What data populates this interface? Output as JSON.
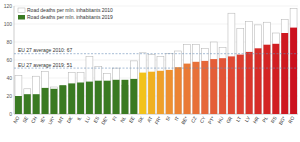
{
  "chart_data": {
    "type": "bar",
    "categories": [
      "NO",
      "SE",
      "CH",
      "IE*",
      "UK*",
      "MT",
      "DK",
      "IL",
      "LU",
      "ES",
      "DE*",
      "FI",
      "NL",
      "EE",
      "SK",
      "AT",
      "FR*",
      "SI",
      "IT",
      "BE*",
      "CZ",
      "CY",
      "PT*",
      "HU",
      "GR",
      "LT",
      "LV",
      "HR",
      "PL",
      "RS",
      "BG*",
      "RO"
    ],
    "series": [
      {
        "name": "Road deaths per mln. inhabitants 2010",
        "color": "#ffffff",
        "values": [
          43,
          28,
          42,
          47,
          30,
          31,
          46,
          46,
          64,
          53,
          45,
          51,
          32,
          59,
          68,
          66,
          64,
          67,
          70,
          77,
          77,
          73,
          80,
          74,
          112,
          95,
          103,
          99,
          102,
          90,
          105,
          117
        ]
      },
      {
        "name": "Road deaths per mln. inhabitants 2019",
        "color": "#3a7a22",
        "colors": [
          "#3a7a22",
          "#3a7a22",
          "#3a7a22",
          "#3a7a22",
          "#3a7a22",
          "#3a7a22",
          "#3a7a22",
          "#3a7a22",
          "#3a7a22",
          "#3a7a22",
          "#3a7a22",
          "#3a7a22",
          "#3a7a22",
          "#3a7a22",
          "#f2c21a",
          "#f0b020",
          "#efa02a",
          "#ee9030",
          "#ec8434",
          "#ea7a36",
          "#e87038",
          "#e6683a",
          "#e45e38",
          "#e25436",
          "#e04a34",
          "#dd3f30",
          "#da352c",
          "#d72c28",
          "#d42424",
          "#d11e22",
          "#ce1820",
          "#cb121e"
        ],
        "values": [
          20,
          22,
          22,
          29,
          28,
          32,
          34,
          35,
          36,
          37,
          37,
          38,
          38,
          39,
          46,
          47,
          48,
          49,
          52,
          56,
          58,
          59,
          61,
          62,
          64,
          66,
          69,
          73,
          77,
          78,
          90,
          96
        ]
      }
    ],
    "reference_lines": [
      {
        "label": "EU 27 average 2010: 67",
        "value": 67
      },
      {
        "label": "EU 27 average 2019: 51",
        "value": 51
      }
    ],
    "ylim": [
      0,
      120
    ],
    "yticks": [
      0,
      20,
      40,
      60,
      80,
      100,
      120
    ],
    "grid": true,
    "legend": "upper-left"
  }
}
